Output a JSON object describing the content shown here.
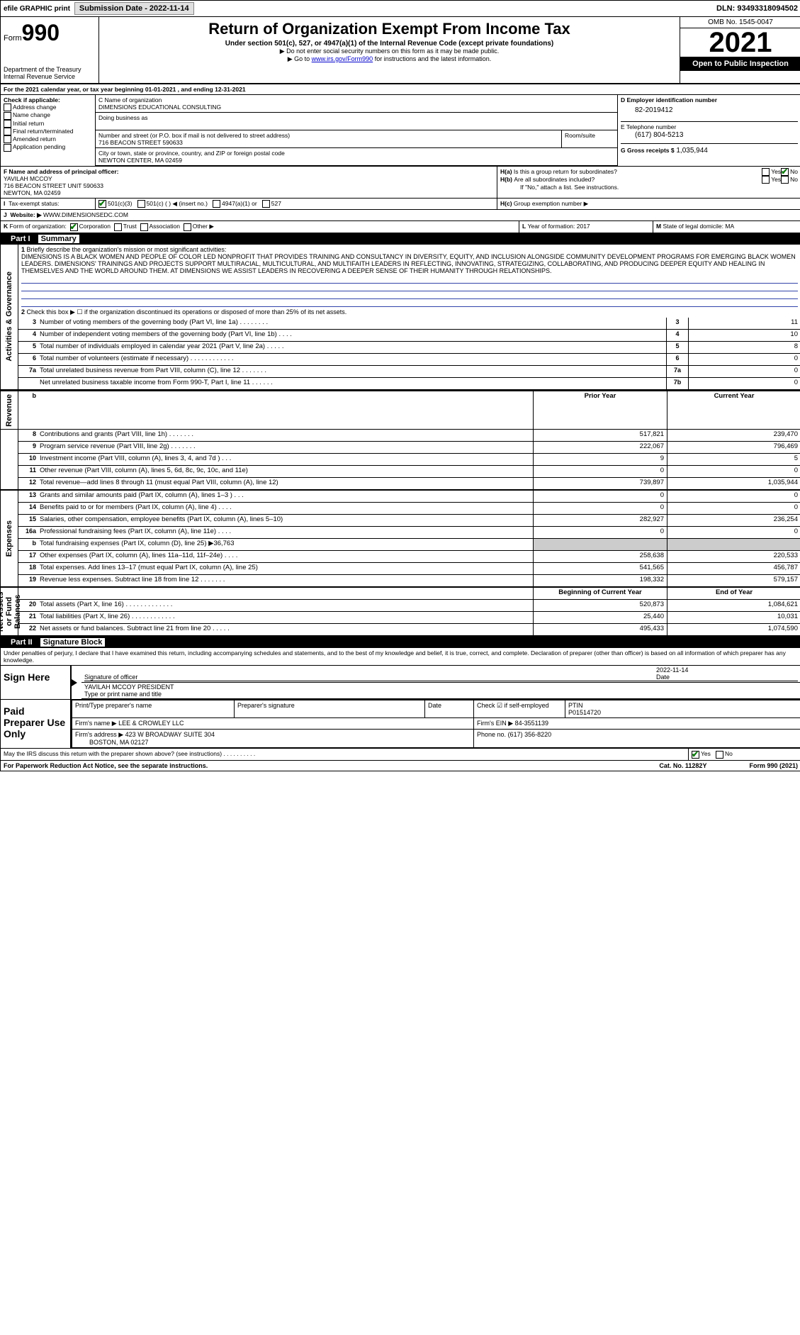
{
  "topbar": {
    "efile": "efile GRAPHIC print",
    "submission_label": "Submission Date - 2022-11-14",
    "dln": "DLN: 93493318094502"
  },
  "header": {
    "form_label": "Form",
    "form_num": "990",
    "dept": "Department of the Treasury",
    "irs": "Internal Revenue Service",
    "title": "Return of Organization Exempt From Income Tax",
    "sub": "Under section 501(c), 527, or 4947(a)(1) of the Internal Revenue Code (except private foundations)",
    "note1": "▶ Do not enter social security numbers on this form as it may be made public.",
    "note2_pre": "▶ Go to ",
    "note2_link": "www.irs.gov/Form990",
    "note2_post": " for instructions and the latest information.",
    "omb": "OMB No. 1545-0047",
    "year": "2021",
    "open": "Open to Public Inspection"
  },
  "A": {
    "text": "For the 2021 calendar year, or tax year beginning 01-01-2021    , and ending 12-31-2021"
  },
  "B": {
    "label": "Check if applicable:",
    "opts": [
      "Address change",
      "Name change",
      "Initial return",
      "Final return/terminated",
      "Amended return",
      "Application pending"
    ]
  },
  "C": {
    "name_label": "C Name of organization",
    "name": "DIMENSIONS EDUCATIONAL CONSULTING",
    "dba_label": "Doing business as",
    "street_label": "Number and street (or P.O. box if mail is not delivered to street address)",
    "street": "716 BEACON STREET 590633",
    "room_label": "Room/suite",
    "city_label": "City or town, state or province, country, and ZIP or foreign postal code",
    "city": "NEWTON CENTER, MA  02459"
  },
  "D": {
    "label": "D Employer identification number",
    "val": "82-2019412"
  },
  "E": {
    "label": "E Telephone number",
    "val": "(617) 804-5213"
  },
  "G": {
    "label": "G Gross receipts $",
    "val": "1,035,944"
  },
  "F": {
    "label": "F  Name and address of principal officer:",
    "name": "YAVILAH MCCOY",
    "addr1": "716 BEACON STREET UNIT 590633",
    "addr2": "NEWTON, MA  02459"
  },
  "H": {
    "a": "Is this a group return for subordinates?",
    "b": "Are all subordinates included?",
    "b_note": "If \"No,\" attach a list. See instructions.",
    "c": "Group exemption number ▶",
    "yes": "Yes",
    "no": "No"
  },
  "I": {
    "label": "Tax-exempt status:",
    "a": "501(c)(3)",
    "b": "501(c) (    ) ◀ (insert no.)",
    "c": "4947(a)(1) or",
    "d": "527"
  },
  "J": {
    "label": "Website: ▶",
    "val": "WWW.DIMENSIONSEDC.COM"
  },
  "K": {
    "label": "Form of organization:",
    "a": "Corporation",
    "b": "Trust",
    "c": "Association",
    "d": "Other ▶"
  },
  "L": {
    "label": "Year of formation:",
    "val": "2017"
  },
  "M": {
    "label": "State of legal domicile:",
    "val": "MA"
  },
  "part1": {
    "hdr": "Part I",
    "title": "Summary",
    "l1": "Briefly describe the organization's mission or most significant activities:",
    "mission": "DIMENSIONS IS A BLACK WOMEN AND PEOPLE OF COLOR LED NONPROFIT THAT PROVIDES TRAINING AND CONSULTANCY IN DIVERSITY, EQUITY, AND INCLUSION ALONGSIDE COMMUNITY DEVELOPMENT PROGRAMS FOR EMERGING BLACK WOMEN LEADERS. DIMENSIONS' TRAININGS AND PROJECTS SUPPORT MULTIRACIAL, MULTICULTURAL, AND MULTIFAITH LEADERS IN REFLECTING, INNOVATING, STRATEGIZING, COLLABORATING, AND PRODUCING DEEPER EQUITY AND HEALING IN THEMSELVES AND THE WORLD AROUND THEM. AT DIMENSIONS WE ASSIST LEADERS IN RECOVERING A DEEPER SENSE OF THEIR HUMANITY THROUGH RELATIONSHIPS.",
    "l2": "Check this box ▶ ☐ if the organization discontinued its operations or disposed of more than 25% of its net assets.",
    "gov_label": "Activities & Governance",
    "rev_label": "Revenue",
    "exp_label": "Expenses",
    "net_label": "Net Assets or Fund Balances",
    "lines_gov": [
      {
        "n": "3",
        "t": "Number of voting members of the governing body (Part VI, line 1a)  .   .   .   .   .   .   .   .",
        "box": "3",
        "v": "11"
      },
      {
        "n": "4",
        "t": "Number of independent voting members of the governing body (Part VI, line 1b)  .   .   .   .",
        "box": "4",
        "v": "10"
      },
      {
        "n": "5",
        "t": "Total number of individuals employed in calendar year 2021 (Part V, line 2a)  .   .   .   .   .",
        "box": "5",
        "v": "8"
      },
      {
        "n": "6",
        "t": "Total number of volunteers (estimate if necessary)  .   .   .   .   .   .   .   .   .   .   .   .",
        "box": "6",
        "v": "0"
      },
      {
        "n": "7a",
        "t": "Total unrelated business revenue from Part VIII, column (C), line 12  .   .   .   .   .   .   .",
        "box": "7a",
        "v": "0"
      },
      {
        "n": "",
        "t": "Net unrelated business taxable income from Form 990-T, Part I, line 11  .   .   .   .   .   .",
        "box": "7b",
        "v": "0"
      }
    ],
    "col_prior": "Prior Year",
    "col_curr": "Current Year",
    "lines_rev": [
      {
        "n": "8",
        "t": "Contributions and grants (Part VIII, line 1h)  .   .   .   .   .   .   .",
        "p": "517,821",
        "c": "239,470"
      },
      {
        "n": "9",
        "t": "Program service revenue (Part VIII, line 2g)  .   .   .   .   .   .   .",
        "p": "222,067",
        "c": "796,469"
      },
      {
        "n": "10",
        "t": "Investment income (Part VIII, column (A), lines 3, 4, and 7d )  .   .   .",
        "p": "9",
        "c": "5"
      },
      {
        "n": "11",
        "t": "Other revenue (Part VIII, column (A), lines 5, 6d, 8c, 9c, 10c, and 11e)",
        "p": "0",
        "c": "0"
      },
      {
        "n": "12",
        "t": "Total revenue—add lines 8 through 11 (must equal Part VIII, column (A), line 12)",
        "p": "739,897",
        "c": "1,035,944"
      }
    ],
    "lines_exp": [
      {
        "n": "13",
        "t": "Grants and similar amounts paid (Part IX, column (A), lines 1–3 )  .   .   .",
        "p": "0",
        "c": "0"
      },
      {
        "n": "14",
        "t": "Benefits paid to or for members (Part IX, column (A), line 4)  .   .   .   .",
        "p": "0",
        "c": "0"
      },
      {
        "n": "15",
        "t": "Salaries, other compensation, employee benefits (Part IX, column (A), lines 5–10)",
        "p": "282,927",
        "c": "236,254"
      },
      {
        "n": "16a",
        "t": "Professional fundraising fees (Part IX, column (A), line 11e)  .   .   .   .",
        "p": "0",
        "c": "0"
      },
      {
        "n": "b",
        "t": "Total fundraising expenses (Part IX, column (D), line 25) ▶36,763",
        "p": "",
        "c": "",
        "shade": true
      },
      {
        "n": "17",
        "t": "Other expenses (Part IX, column (A), lines 11a–11d, 11f–24e)  .   .   .   .",
        "p": "258,638",
        "c": "220,533"
      },
      {
        "n": "18",
        "t": "Total expenses. Add lines 13–17 (must equal Part IX, column (A), line 25)",
        "p": "541,565",
        "c": "456,787"
      },
      {
        "n": "19",
        "t": "Revenue less expenses. Subtract line 18 from line 12  .   .   .   .   .   .   .",
        "p": "198,332",
        "c": "579,157"
      }
    ],
    "col_beg": "Beginning of Current Year",
    "col_end": "End of Year",
    "lines_net": [
      {
        "n": "20",
        "t": "Total assets (Part X, line 16)  .   .   .   .   .   .   .   .   .   .   .   .   .",
        "p": "520,873",
        "c": "1,084,621"
      },
      {
        "n": "21",
        "t": "Total liabilities (Part X, line 26)  .   .   .   .   .   .   .   .   .   .   .   .",
        "p": "25,440",
        "c": "10,031"
      },
      {
        "n": "22",
        "t": "Net assets or fund balances. Subtract line 21 from line 20  .   .   .   .   .",
        "p": "495,433",
        "c": "1,074,590"
      }
    ]
  },
  "part2": {
    "hdr": "Part II",
    "title": "Signature Block",
    "decl": "Under penalties of perjury, I declare that I have examined this return, including accompanying schedules and statements, and to the best of my knowledge and belief, it is true, correct, and complete. Declaration of preparer (other than officer) is based on all information of which preparer has any knowledge.",
    "sign_here": "Sign Here",
    "sig_officer": "Signature of officer",
    "sig_date": "2022-11-14",
    "date_lbl": "Date",
    "officer_name": "YAVILAH MCCOY PRESIDENT",
    "type_name": "Type or print name and title",
    "paid": "Paid Preparer Use Only",
    "prep_name_lbl": "Print/Type preparer's name",
    "prep_sig_lbl": "Preparer's signature",
    "check_self": "Check ☑ if self-employed",
    "ptin_lbl": "PTIN",
    "ptin": "P01514720",
    "firm_name_lbl": "Firm's name   ▶",
    "firm_name": "LEE & CROWLEY LLC",
    "firm_ein_lbl": "Firm's EIN ▶",
    "firm_ein": "84-3551139",
    "firm_addr_lbl": "Firm's address ▶",
    "firm_addr1": "423 W BROADWAY SUITE 304",
    "firm_addr2": "BOSTON, MA  02127",
    "phone_lbl": "Phone no.",
    "phone": "(617) 356-8220",
    "discuss": "May the IRS discuss this return with the preparer shown above? (see instructions)   .   .   .   .   .   .   .   .   .   .",
    "yes": "Yes",
    "no": "No"
  },
  "footer": {
    "left": "For Paperwork Reduction Act Notice, see the separate instructions.",
    "mid": "Cat. No. 11282Y",
    "right": "Form 990 (2021)"
  }
}
